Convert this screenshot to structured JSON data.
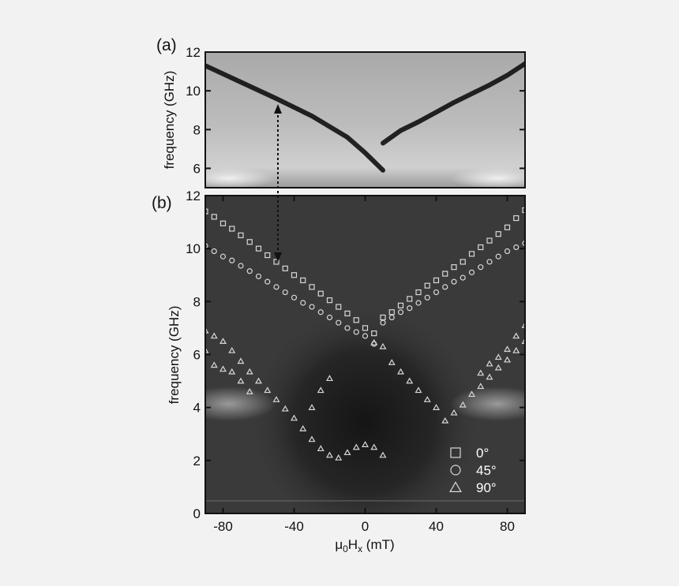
{
  "chart_data": [
    {
      "type": "heatmap",
      "panel_label": "(a)",
      "ylabel": "frequency (GHz)",
      "xlim": [
        -90,
        90
      ],
      "ylim": [
        5,
        12
      ],
      "yticks": [
        6,
        8,
        10,
        12
      ],
      "colors": {
        "background": "#b9b9b9",
        "trace": "#101010"
      },
      "traces": [
        {
          "name": "",
          "x": [
            -90,
            -70,
            -50,
            -30,
            -10,
            0,
            10
          ],
          "y": [
            11.3,
            10.45,
            9.6,
            8.7,
            7.6,
            6.8,
            5.9
          ]
        },
        {
          "name": "",
          "x": [
            10,
            20,
            30,
            40,
            50,
            60,
            70,
            80,
            90
          ],
          "y": [
            7.3,
            7.95,
            8.4,
            8.9,
            9.4,
            9.85,
            10.3,
            10.8,
            11.4
          ]
        }
      ]
    },
    {
      "type": "scatter",
      "panel_label": "(b)",
      "ylabel": "frequency (GHz)",
      "xlabel_parts": {
        "mu": "μ",
        "sub0": "0",
        "H": "H",
        "subx": "x",
        "unit": " (mT)"
      },
      "xlim": [
        -90,
        90
      ],
      "ylim": [
        0,
        12
      ],
      "xticks": [
        -80,
        -40,
        0,
        40,
        80
      ],
      "yticks": [
        0,
        2,
        4,
        6,
        8,
        10,
        12
      ],
      "legend_position": "bottom-right",
      "colors": {
        "background": "#3a3a3a",
        "marker": "#d8d8d8"
      },
      "series": [
        {
          "name": "0°",
          "marker": "square",
          "x": [
            -90,
            -85,
            -80,
            -75,
            -70,
            -65,
            -60,
            -55,
            -50,
            -45,
            -40,
            -35,
            -30,
            -25,
            -20,
            -15,
            -10,
            -5,
            0,
            5,
            10,
            15,
            20,
            25,
            30,
            35,
            40,
            45,
            50,
            55,
            60,
            65,
            70,
            75,
            80,
            85,
            90
          ],
          "y": [
            11.4,
            11.2,
            10.95,
            10.75,
            10.5,
            10.25,
            10.0,
            9.75,
            9.5,
            9.25,
            9.0,
            8.8,
            8.55,
            8.3,
            8.05,
            7.8,
            7.55,
            7.3,
            7.0,
            6.8,
            7.4,
            7.6,
            7.85,
            8.1,
            8.35,
            8.6,
            8.8,
            9.05,
            9.3,
            9.5,
            9.8,
            10.05,
            10.3,
            10.55,
            10.8,
            11.15,
            11.45
          ]
        },
        {
          "name": "45°",
          "marker": "circle",
          "x": [
            -90,
            -85,
            -80,
            -75,
            -70,
            -65,
            -60,
            -55,
            -50,
            -45,
            -40,
            -35,
            -30,
            -25,
            -20,
            -15,
            -10,
            -5,
            0,
            5,
            10,
            15,
            20,
            25,
            30,
            35,
            40,
            45,
            50,
            55,
            60,
            65,
            70,
            75,
            80,
            85,
            90
          ],
          "y": [
            10.1,
            9.9,
            9.7,
            9.55,
            9.35,
            9.15,
            8.95,
            8.75,
            8.55,
            8.35,
            8.15,
            7.95,
            7.8,
            7.6,
            7.4,
            7.2,
            7.0,
            6.85,
            6.7,
            6.4,
            7.2,
            7.4,
            7.6,
            7.75,
            7.95,
            8.15,
            8.35,
            8.55,
            8.75,
            8.9,
            9.1,
            9.3,
            9.5,
            9.7,
            9.9,
            10.05,
            10.2
          ]
        },
        {
          "name": "90°",
          "marker": "triangle",
          "x": [
            -90,
            -85,
            -80,
            -75,
            -70,
            -65,
            -60,
            -55,
            -50,
            -45,
            -40,
            -35,
            -30,
            -25,
            -20,
            -15,
            -10,
            -5,
            0,
            5,
            10,
            15,
            20,
            25,
            30,
            35,
            40,
            45,
            50,
            55,
            60,
            65,
            70,
            75,
            80,
            85,
            90,
            -90,
            -85,
            -80,
            -75,
            -70,
            -65,
            -30,
            -25,
            -20,
            5,
            10,
            65,
            70,
            75,
            80,
            85,
            90
          ],
          "y": [
            6.9,
            6.7,
            6.5,
            6.15,
            5.75,
            5.35,
            5.0,
            4.65,
            4.3,
            3.95,
            3.6,
            3.2,
            2.8,
            2.45,
            2.2,
            2.1,
            2.3,
            2.5,
            2.6,
            2.5,
            2.2,
            5.7,
            5.35,
            5.0,
            4.65,
            4.3,
            4.0,
            3.5,
            3.8,
            4.1,
            4.5,
            4.8,
            5.15,
            5.5,
            5.8,
            6.15,
            6.5,
            6.15,
            5.6,
            5.45,
            5.35,
            5.0,
            4.6,
            4.0,
            4.65,
            5.1,
            6.45,
            6.3,
            5.3,
            5.65,
            5.9,
            6.2,
            6.7,
            7.1
          ]
        }
      ]
    }
  ]
}
